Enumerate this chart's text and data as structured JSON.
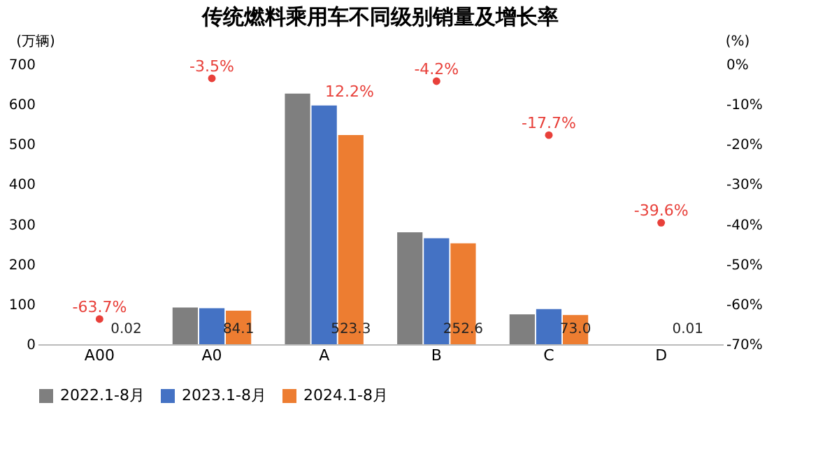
{
  "chart_data": {
    "type": "bar",
    "title": "传统燃料乘用车不同级别销量及增长率",
    "ylabel": "(万辆)",
    "y2label": "(%)",
    "categories": [
      "A00",
      "A0",
      "A",
      "B",
      "C",
      "D"
    ],
    "series": [
      {
        "name": "2022.1-8月",
        "color": "#7f7f7f",
        "values": [
          0,
          92,
          627,
          280,
          75,
          0
        ]
      },
      {
        "name": "2023.1-8月",
        "color": "#4472c4",
        "values": [
          0,
          90,
          597,
          265,
          88,
          0
        ]
      },
      {
        "name": "2024.1-8月",
        "color": "#ed7d31",
        "values": [
          0.02,
          84.1,
          523.3,
          252.6,
          73.0,
          0.01
        ],
        "value_labels": [
          "0.02",
          "84.1",
          "523.3",
          "252.6",
          "73.0",
          "0.01"
        ]
      },
      {
        "type": "scatter",
        "axis": "y2",
        "marker": "circle",
        "color": "#e8403a",
        "values": [
          -63.7,
          -3.5,
          null,
          -4.2,
          -17.7,
          -39.6
        ],
        "value_labels": [
          "-63.7%",
          "-3.5%",
          null,
          "-4.2%",
          "-17.7%",
          "-39.6%"
        ]
      }
    ],
    "ylim": [
      0,
      700
    ],
    "yticks": [
      0,
      100,
      200,
      300,
      400,
      500,
      600,
      700
    ],
    "y2lim": [
      -70,
      0
    ],
    "y2ticks": [
      {
        "value": 0,
        "label": "0%"
      },
      {
        "value": -10,
        "label": "-10%"
      },
      {
        "value": -20,
        "label": "-20%"
      },
      {
        "value": -30,
        "label": "-30%"
      },
      {
        "value": -40,
        "label": "-40%"
      },
      {
        "value": -50,
        "label": "-50%"
      },
      {
        "value": -60,
        "label": "-60%"
      },
      {
        "value": -70,
        "label": "-70%"
      }
    ],
    "annotations": [
      "12.2%"
    ],
    "grid": false,
    "legend": "bottom"
  }
}
